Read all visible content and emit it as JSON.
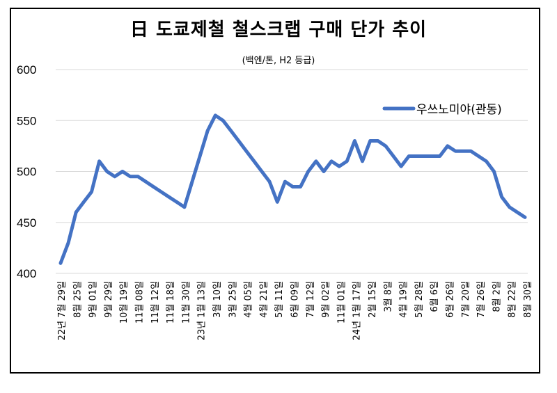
{
  "chart_data": {
    "type": "line",
    "title": "日 도쿄제철 철스크랩 구매 단가 추이",
    "subtitle": "(백엔/톤, H2 등급)",
    "xlabel": "",
    "ylabel": "",
    "ylim": [
      400,
      600
    ],
    "yticks": [
      "400",
      "450",
      "500",
      "550",
      "600"
    ],
    "grid": true,
    "legend_position": "top-right",
    "series": [
      {
        "name": "우쓰노미야(관동)",
        "color": "#4472C4",
        "values": [
          410,
          430,
          460,
          470,
          480,
          510,
          500,
          495,
          500,
          495,
          495,
          490,
          485,
          480,
          475,
          470,
          465,
          490,
          515,
          540,
          555,
          550,
          540,
          530,
          520,
          510,
          500,
          490,
          470,
          490,
          485,
          485,
          500,
          510,
          500,
          510,
          505,
          510,
          530,
          510,
          530,
          530,
          525,
          515,
          505,
          515,
          515,
          515,
          515,
          515,
          525,
          520,
          520,
          520,
          515,
          510,
          500,
          475,
          465,
          460,
          455
        ]
      }
    ],
    "x_labels": [
      "22년 7월 29일",
      "8월 25일",
      "9월 01일",
      "9월 29일",
      "10월 19일",
      "11월 08일",
      "11월 12일",
      "11월 18일",
      "11월 30일",
      "23년 1월 13일",
      "3월 10일",
      "3월 25일",
      "4월 05일",
      "4월 21일",
      "5월 11일",
      "6월 09일",
      "7월 12일",
      "9월 02일",
      "11월 01일",
      "24년 1월 17일",
      "2월 15일",
      "3월 8일",
      "4월 19일",
      "5월 28일",
      "6월 6일",
      "6월 26일",
      "7월 20일",
      "7월 26일",
      "8월 2일",
      "8월 22일",
      "8월 30일"
    ]
  }
}
